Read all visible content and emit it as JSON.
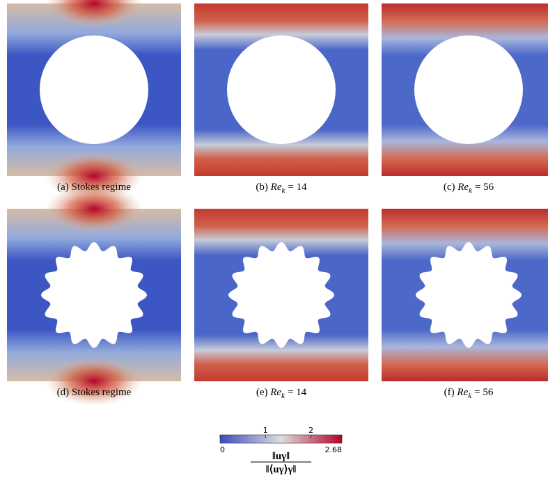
{
  "figures": [
    {
      "caption": {
        "label": "(a)",
        "text": "Stokes regime"
      }
    },
    {
      "caption": {
        "label": "(b)",
        "var": "Re",
        "sub": "k",
        "rest": "= 14"
      }
    },
    {
      "caption": {
        "label": "(c)",
        "var": "Re",
        "sub": "k",
        "rest": "= 56"
      }
    },
    {
      "caption": {
        "label": "(d)",
        "text": "Stokes regime"
      }
    },
    {
      "caption": {
        "label": "(e)",
        "var": "Re",
        "sub": "k",
        "rest": "= 14"
      }
    },
    {
      "caption": {
        "label": "(f)",
        "var": "Re",
        "sub": "k",
        "rest": "= 56"
      }
    }
  ],
  "colorbar": {
    "lim": [
      0,
      2.68
    ],
    "ticks": [
      0,
      1,
      2,
      2.68
    ],
    "label": {
      "numerator": "‖uγ‖",
      "denominator": "‖⟨uγ⟩γ‖"
    }
  }
}
